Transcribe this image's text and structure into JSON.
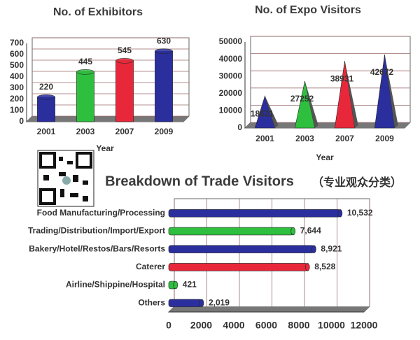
{
  "chart_data": [
    {
      "type": "bar",
      "title": "No. of Exhibitors",
      "x_label": "Year",
      "categories": [
        "2001",
        "2003",
        "2007",
        "2009"
      ],
      "values": [
        220,
        445,
        545,
        630
      ],
      "colors": [
        "#2b2f9e",
        "#2fbf3f",
        "#e8283a",
        "#2b2f9e"
      ],
      "ylim": [
        0,
        700
      ],
      "yticks": [
        0,
        100,
        200,
        300,
        400,
        500,
        600,
        700
      ],
      "grid": true
    },
    {
      "type": "cone",
      "title": "No. of Expo Visitors",
      "x_label": "Year",
      "categories": [
        "2001",
        "2003",
        "2007",
        "2009"
      ],
      "values": [
        18621,
        27252,
        38931,
        42672
      ],
      "colors": [
        "#2b2f9e",
        "#2fbf3f",
        "#e8283a",
        "#2b2f9e"
      ],
      "ylim": [
        0,
        50000
      ],
      "yticks": [
        0,
        10000,
        20000,
        30000,
        40000,
        50000
      ],
      "grid": true
    },
    {
      "type": "barh",
      "title": "Breakdown of Trade Visitors",
      "subtitle": "（专业观众分类）",
      "categories": [
        "Food  Manufacturing/Processing",
        "Trading/Distribution/Import/Export",
        "Bakery/Hotel/Restos/Bars/Resorts",
        "Caterer",
        "Airline/Shippine/Hospital",
        "Others"
      ],
      "values": [
        10532,
        7644,
        8921,
        8528,
        421,
        2019
      ],
      "value_labels": [
        "10,532",
        "7,644",
        "8,921",
        "8,528",
        "421",
        "2,019"
      ],
      "colors": [
        "#2b2f9e",
        "#2fbf3f",
        "#2b2f9e",
        "#e8283a",
        "#2fbf3f",
        "#2b2f9e"
      ],
      "xlim": [
        0,
        12000
      ],
      "xticks": [
        0,
        2000,
        4000,
        6000,
        8000,
        10000,
        12000
      ],
      "grid": true
    }
  ]
}
